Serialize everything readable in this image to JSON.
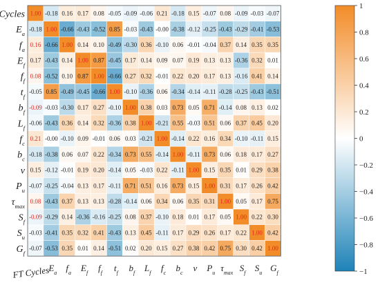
{
  "chart_data": {
    "type": "heatmap",
    "row_labels": [
      "FT Cycles",
      "E_a",
      "f_a",
      "E_f",
      "f_f",
      "t_f",
      "b_f",
      "L_f",
      "f_c",
      "b_c",
      "v",
      "P_u",
      "τ_max",
      "S_f",
      "S_u",
      "G_f"
    ],
    "col_labels": [
      "FT Cycles",
      "E_a",
      "f_a",
      "E_f",
      "f_f",
      "t_f",
      "b_f",
      "L_f",
      "f_c",
      "b_c",
      "v",
      "P_u",
      "τ_max",
      "S_f",
      "S_u",
      "G_f"
    ],
    "values": [
      [
        1.0,
        -0.18,
        0.16,
        0.17,
        0.08,
        -0.05,
        -0.09,
        -0.06,
        0.21,
        -0.18,
        0.15,
        -0.07,
        0.08,
        -0.09,
        -0.03,
        -0.07
      ],
      [
        -0.18,
        1.0,
        -0.66,
        -0.43,
        -0.52,
        0.85,
        -0.03,
        -0.43,
        -0.0,
        -0.38,
        -0.12,
        -0.25,
        -0.43,
        -0.29,
        -0.41,
        -0.53
      ],
      [
        0.16,
        -0.66,
        1.0,
        0.14,
        0.1,
        -0.49,
        -0.3,
        0.36,
        -0.1,
        0.06,
        -0.01,
        -0.04,
        0.37,
        0.14,
        0.35,
        0.35
      ],
      [
        0.17,
        -0.43,
        0.14,
        1.0,
        0.87,
        -0.45,
        0.17,
        0.14,
        0.09,
        0.07,
        0.19,
        0.13,
        0.13,
        -0.36,
        0.32,
        0.01
      ],
      [
        0.08,
        -0.52,
        0.1,
        0.87,
        1.0,
        -0.66,
        0.27,
        0.32,
        -0.01,
        0.22,
        0.2,
        0.17,
        0.13,
        -0.16,
        0.41,
        0.14
      ],
      [
        -0.05,
        0.85,
        -0.49,
        -0.45,
        -0.66,
        1.0,
        -0.1,
        -0.36,
        0.06,
        -0.34,
        -0.14,
        -0.11,
        -0.28,
        -0.25,
        -0.43,
        -0.51
      ],
      [
        -0.09,
        -0.03,
        -0.3,
        0.17,
        0.27,
        -0.1,
        1.0,
        0.38,
        0.03,
        0.73,
        0.05,
        0.71,
        -0.14,
        0.08,
        0.13,
        0.02
      ],
      [
        -0.06,
        -0.43,
        0.36,
        0.14,
        0.32,
        -0.36,
        0.38,
        1.0,
        -0.21,
        0.55,
        -0.03,
        0.51,
        0.06,
        0.37,
        0.45,
        0.2
      ],
      [
        0.21,
        -0.0,
        -0.1,
        0.09,
        -0.01,
        0.06,
        0.03,
        -0.21,
        1.0,
        -0.14,
        0.22,
        0.16,
        0.34,
        -0.1,
        -0.11,
        0.15
      ],
      [
        -0.18,
        -0.38,
        0.06,
        0.07,
        0.22,
        -0.34,
        0.73,
        0.55,
        -0.14,
        1.0,
        -0.11,
        0.73,
        0.06,
        0.18,
        0.17,
        0.27
      ],
      [
        0.15,
        -0.12,
        -0.01,
        0.19,
        0.2,
        -0.14,
        0.05,
        -0.03,
        0.22,
        -0.11,
        1.0,
        0.15,
        0.35,
        0.01,
        0.29,
        0.38
      ],
      [
        -0.07,
        -0.25,
        -0.04,
        0.13,
        0.17,
        -0.11,
        0.71,
        0.51,
        0.16,
        0.73,
        0.15,
        1.0,
        0.31,
        0.17,
        0.26,
        0.42
      ],
      [
        0.08,
        -0.43,
        0.37,
        0.13,
        0.13,
        -0.28,
        -0.14,
        0.06,
        0.34,
        0.06,
        0.35,
        0.31,
        1.0,
        0.05,
        0.17,
        0.75
      ],
      [
        -0.09,
        -0.29,
        0.14,
        -0.36,
        -0.16,
        -0.25,
        0.08,
        0.37,
        -0.1,
        0.18,
        0.01,
        0.17,
        0.05,
        1.0,
        0.22,
        0.3
      ],
      [
        -0.03,
        -0.41,
        0.35,
        0.32,
        0.41,
        -0.43,
        0.13,
        0.45,
        -0.11,
        0.17,
        0.29,
        0.26,
        0.17,
        0.22,
        1.0,
        0.42
      ],
      [
        -0.07,
        -0.53,
        0.35,
        0.01,
        0.14,
        -0.51,
        0.02,
        0.2,
        0.15,
        0.27,
        0.38,
        0.42,
        0.75,
        0.3,
        0.42,
        1.0
      ]
    ],
    "colorbar": {
      "range": [
        -1,
        1
      ],
      "ticks": [
        1,
        0.8,
        0.6,
        0.4,
        0.2,
        0,
        -0.2,
        -0.4,
        -0.6,
        -0.8,
        -1
      ],
      "tick_labels": [
        "1",
        "0.8",
        "0.6",
        "0.4",
        "0.2",
        "0",
        "−0.2",
        "−0.4",
        "−0.6",
        "−0.8",
        "−1"
      ],
      "positive_color": "#F28C28",
      "negative_color": "#1E83B8",
      "neutral_color": "#FFFFFF"
    },
    "value_text_color": "#222222",
    "diagonal_text_color": "#E8231B"
  }
}
